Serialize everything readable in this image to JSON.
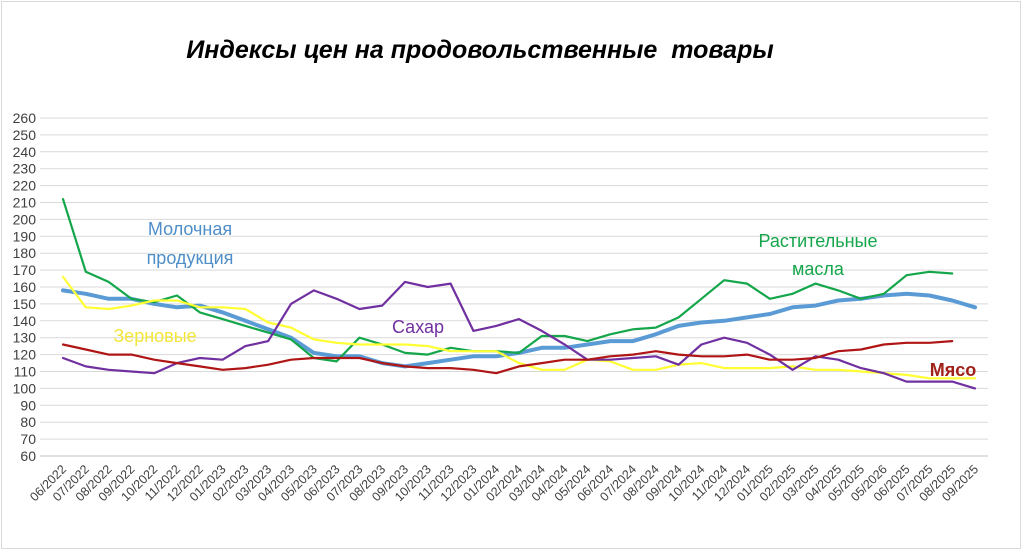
{
  "chart_data": {
    "type": "line",
    "title": "Индексы цен на продовольственные  товары",
    "xlabel": "",
    "ylabel": "",
    "ylim": [
      60,
      260
    ],
    "ytick_step": 10,
    "grid": true,
    "categories": [
      "06/2022",
      "07/2022",
      "08/2022",
      "09/2022",
      "10/2022",
      "11/2022",
      "12/2022",
      "01/2023",
      "02/2023",
      "03/2023",
      "04/2023",
      "05/2023",
      "06/2023",
      "07/2023",
      "08/2023",
      "09/2023",
      "10/2023",
      "11/2023",
      "12/2023",
      "01/2024",
      "02/2024",
      "03/2024",
      "04/2024",
      "05/2024",
      "06/2024",
      "07/2024",
      "08/2024",
      "09/2024",
      "10/2024",
      "11/2024",
      "12/2024",
      "01/2025",
      "02/2025",
      "03/2025",
      "04/2025",
      "05/2025",
      "05/2026",
      "06/2025",
      "07/2025",
      "08/2025",
      "09/2025"
    ],
    "series": [
      {
        "name": "Молочная продукция",
        "color": "#5b9bd5",
        "width": 4,
        "values": [
          158,
          156,
          153,
          153,
          150,
          148,
          149,
          145,
          140,
          135,
          130,
          121,
          119,
          119,
          115,
          113,
          115,
          117,
          119,
          119,
          121,
          124,
          124,
          126,
          128,
          128,
          132,
          137,
          139,
          140,
          142,
          144,
          148,
          149,
          152,
          153,
          155,
          156,
          155,
          152,
          148
        ]
      },
      {
        "name": "Растительные масла",
        "color": "#14a64a",
        "width": 2.2,
        "values": [
          212,
          169,
          163,
          153,
          151,
          155,
          145,
          141,
          137,
          133,
          129,
          118,
          116,
          130,
          126,
          121,
          120,
          124,
          122,
          122,
          121,
          131,
          131,
          128,
          132,
          135,
          136,
          142,
          153,
          164,
          162,
          153,
          156,
          162,
          158,
          153,
          156,
          167,
          169,
          168,
          null
        ]
      },
      {
        "name": "Зерновые",
        "color": "#ffff33",
        "width": 2.2,
        "values": [
          166,
          148,
          147,
          149,
          152,
          152,
          148,
          148,
          147,
          139,
          136,
          129,
          127,
          126,
          126,
          126,
          125,
          122,
          122,
          122,
          115,
          111,
          111,
          117,
          116,
          111,
          111,
          114,
          115,
          112,
          112,
          112,
          113,
          111,
          111,
          110,
          109,
          108,
          106,
          106,
          106
        ]
      },
      {
        "name": "Сахар",
        "color": "#7030a0",
        "width": 2.2,
        "values": [
          118,
          113,
          111,
          110,
          109,
          115,
          118,
          117,
          125,
          128,
          150,
          158,
          153,
          147,
          149,
          163,
          160,
          162,
          134,
          137,
          141,
          134,
          126,
          117,
          117,
          118,
          119,
          114,
          126,
          130,
          127,
          120,
          111,
          119,
          117,
          112,
          109,
          104,
          104,
          104,
          100
        ]
      },
      {
        "name": "Мясо",
        "color": "#b01515",
        "width": 2.2,
        "values": [
          126,
          123,
          120,
          120,
          117,
          115,
          113,
          111,
          112,
          114,
          117,
          118,
          118,
          118,
          115,
          113,
          112,
          112,
          111,
          109,
          113,
          115,
          117,
          117,
          119,
          120,
          122,
          120,
          119,
          119,
          120,
          117,
          117,
          118,
          122,
          123,
          126,
          127,
          127,
          128,
          null
        ]
      }
    ],
    "annotations": [
      {
        "text": "Молочная",
        "color": "#4f8ec9"
      },
      {
        "text": "продукция",
        "color": "#4f8ec9"
      },
      {
        "text": "Растительные",
        "color": "#14a64a"
      },
      {
        "text": "масла",
        "color": "#14a64a"
      },
      {
        "text": "Зерновые",
        "color": "#f2e63a"
      },
      {
        "text": "Сахар",
        "color": "#7030a0"
      },
      {
        "text": "Мясо",
        "color": "#a0201a"
      }
    ]
  }
}
